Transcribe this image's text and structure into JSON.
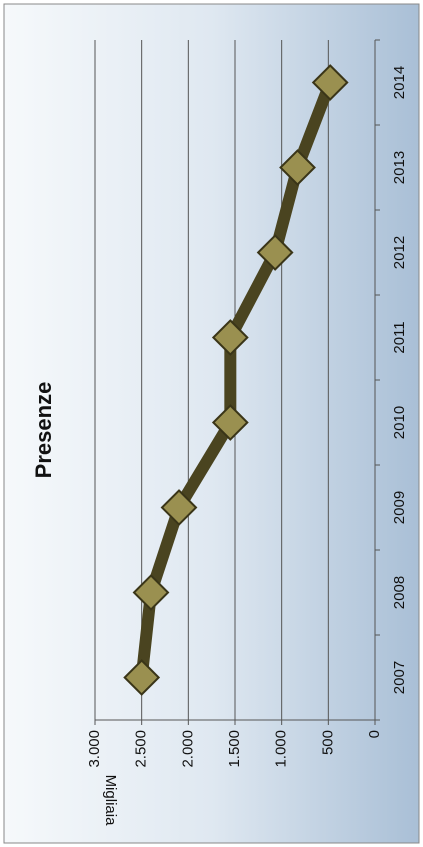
{
  "chart_data": {
    "type": "line",
    "title": "Presenze",
    "y_label": "Migliaia",
    "categories": [
      "2007",
      "2008",
      "2009",
      "2010",
      "2011",
      "2012",
      "2013",
      "2014"
    ],
    "series": [
      {
        "name": "Presenze",
        "color": "#4a4420",
        "marker_color": "#9a9050",
        "values": [
          2500,
          2400,
          2100,
          1550,
          1550,
          1070,
          830,
          480
        ]
      }
    ],
    "ylim": [
      0,
      3000
    ],
    "yticks": [
      0,
      500,
      {
        "value": 1000,
        "label": "1.000"
      },
      {
        "value": 1500,
        "label": "1.500"
      },
      {
        "value": 2000,
        "label": "2.000"
      },
      {
        "value": 2500,
        "label": "2.500"
      },
      {
        "value": 3000,
        "label": "3.000"
      }
    ],
    "grid": true
  }
}
